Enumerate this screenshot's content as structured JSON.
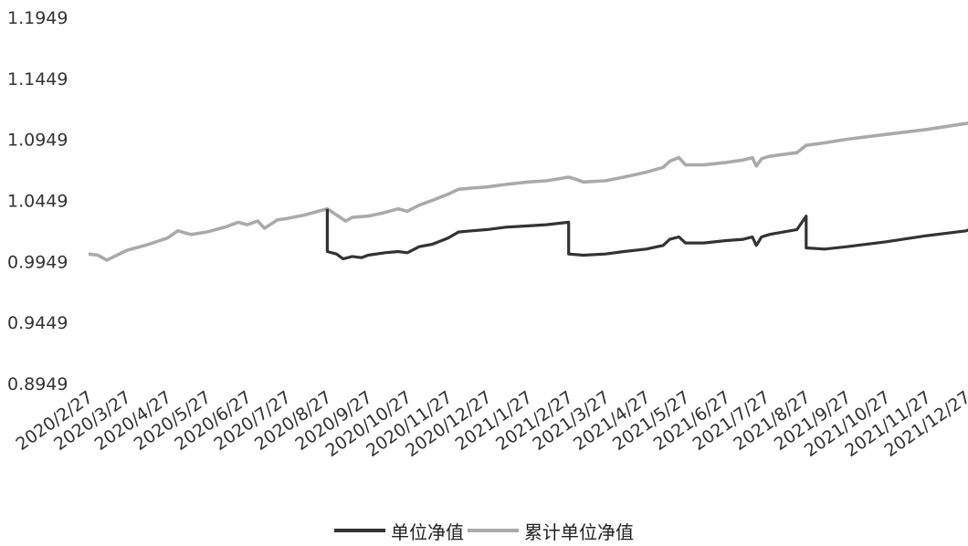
{
  "chart_data": {
    "type": "line",
    "title": "",
    "xlabel": "",
    "ylabel": "",
    "x_ticks": [
      "2020/2/27",
      "2020/3/27",
      "2020/4/27",
      "2020/5/27",
      "2020/6/27",
      "2020/7/27",
      "2020/8/27",
      "2020/9/27",
      "2020/10/27",
      "2020/11/27",
      "2020/12/27",
      "2021/1/27",
      "2021/2/27",
      "2021/3/27",
      "2021/4/27",
      "2021/5/27",
      "2021/6/27",
      "2021/7/27",
      "2021/8/27",
      "2021/9/27",
      "2021/10/27",
      "2021/11/27",
      "2021/12/27"
    ],
    "y_ticks": [
      "1.1949",
      "1.1449",
      "1.0949",
      "1.0449",
      "0.9949",
      "0.9449",
      "0.8949"
    ],
    "ylim": [
      0.8949,
      1.1949
    ],
    "grid": false,
    "legend_position": "bottom",
    "series": [
      {
        "name": "单位净值",
        "color": "#333333",
        "points": [
          [
            "2020/8/27",
            1.038
          ],
          [
            "2020/8/27",
            1.003
          ],
          [
            "2020/9/3",
            1.001
          ],
          [
            "2020/9/8",
            0.997
          ],
          [
            "2020/9/15",
            0.999
          ],
          [
            "2020/9/22",
            0.998
          ],
          [
            "2020/9/27",
            1.0
          ],
          [
            "2020/10/10",
            1.002
          ],
          [
            "2020/10/20",
            1.003
          ],
          [
            "2020/10/27",
            1.002
          ],
          [
            "2020/11/5",
            1.007
          ],
          [
            "2020/11/15",
            1.009
          ],
          [
            "2020/11/27",
            1.014
          ],
          [
            "2020/12/5",
            1.019
          ],
          [
            "2020/12/15",
            1.02
          ],
          [
            "2020/12/27",
            1.021
          ],
          [
            "2021/1/10",
            1.023
          ],
          [
            "2021/1/27",
            1.024
          ],
          [
            "2021/2/10",
            1.025
          ],
          [
            "2021/2/27",
            1.027
          ],
          [
            "2021/2/27",
            1.001
          ],
          [
            "2021/3/10",
            1.0
          ],
          [
            "2021/3/27",
            1.001
          ],
          [
            "2021/4/10",
            1.003
          ],
          [
            "2021/4/27",
            1.005
          ],
          [
            "2021/5/10",
            1.008
          ],
          [
            "2021/5/15",
            1.013
          ],
          [
            "2021/5/22",
            1.015
          ],
          [
            "2021/5/27",
            1.01
          ],
          [
            "2021/6/10",
            1.01
          ],
          [
            "2021/6/27",
            1.012
          ],
          [
            "2021/7/10",
            1.013
          ],
          [
            "2021/7/17",
            1.015
          ],
          [
            "2021/7/20",
            1.008
          ],
          [
            "2021/7/24",
            1.015
          ],
          [
            "2021/7/30",
            1.017
          ],
          [
            "2021/8/20",
            1.021
          ],
          [
            "2021/8/27",
            1.032
          ],
          [
            "2021/8/27",
            1.006
          ],
          [
            "2021/9/10",
            1.005
          ],
          [
            "2021/9/27",
            1.007
          ],
          [
            "2021/10/27",
            1.011
          ],
          [
            "2021/11/27",
            1.016
          ],
          [
            "2021/12/27",
            1.02
          ],
          [
            "2022/1/5",
            1.024
          ]
        ]
      },
      {
        "name": "累计单位净值",
        "color": "#aaaaaa",
        "points": [
          [
            "2020/2/27",
            1.001
          ],
          [
            "2020/3/5",
            1.0
          ],
          [
            "2020/3/12",
            0.996
          ],
          [
            "2020/3/27",
            1.004
          ],
          [
            "2020/4/10",
            1.008
          ],
          [
            "2020/4/27",
            1.014
          ],
          [
            "2020/5/5",
            1.02
          ],
          [
            "2020/5/15",
            1.017
          ],
          [
            "2020/5/27",
            1.019
          ],
          [
            "2020/6/10",
            1.023
          ],
          [
            "2020/6/20",
            1.027
          ],
          [
            "2020/6/27",
            1.025
          ],
          [
            "2020/7/5",
            1.028
          ],
          [
            "2020/7/10",
            1.022
          ],
          [
            "2020/7/20",
            1.029
          ],
          [
            "2020/7/27",
            1.03
          ],
          [
            "2020/8/10",
            1.033
          ],
          [
            "2020/8/20",
            1.036
          ],
          [
            "2020/8/27",
            1.038
          ],
          [
            "2020/9/3",
            1.033
          ],
          [
            "2020/9/10",
            1.028
          ],
          [
            "2020/9/15",
            1.031
          ],
          [
            "2020/9/27",
            1.032
          ],
          [
            "2020/10/10",
            1.035
          ],
          [
            "2020/10/20",
            1.038
          ],
          [
            "2020/10/27",
            1.036
          ],
          [
            "2020/11/5",
            1.041
          ],
          [
            "2020/11/15",
            1.045
          ],
          [
            "2020/11/27",
            1.05
          ],
          [
            "2020/12/5",
            1.054
          ],
          [
            "2020/12/15",
            1.055
          ],
          [
            "2020/12/27",
            1.056
          ],
          [
            "2021/1/10",
            1.058
          ],
          [
            "2021/1/27",
            1.06
          ],
          [
            "2021/2/10",
            1.061
          ],
          [
            "2021/2/27",
            1.064
          ],
          [
            "2021/3/5",
            1.062
          ],
          [
            "2021/3/10",
            1.06
          ],
          [
            "2021/3/27",
            1.061
          ],
          [
            "2021/4/10",
            1.064
          ],
          [
            "2021/4/27",
            1.068
          ],
          [
            "2021/5/10",
            1.072
          ],
          [
            "2021/5/15",
            1.077
          ],
          [
            "2021/5/22",
            1.08
          ],
          [
            "2021/5/27",
            1.074
          ],
          [
            "2021/6/10",
            1.074
          ],
          [
            "2021/6/27",
            1.076
          ],
          [
            "2021/7/10",
            1.078
          ],
          [
            "2021/7/17",
            1.08
          ],
          [
            "2021/7/20",
            1.073
          ],
          [
            "2021/7/24",
            1.079
          ],
          [
            "2021/7/30",
            1.081
          ],
          [
            "2021/8/20",
            1.084
          ],
          [
            "2021/8/27",
            1.09
          ],
          [
            "2021/9/10",
            1.092
          ],
          [
            "2021/9/27",
            1.095
          ],
          [
            "2021/10/27",
            1.099
          ],
          [
            "2021/11/27",
            1.103
          ],
          [
            "2021/12/27",
            1.108
          ],
          [
            "2022/1/5",
            1.11
          ]
        ]
      }
    ]
  }
}
